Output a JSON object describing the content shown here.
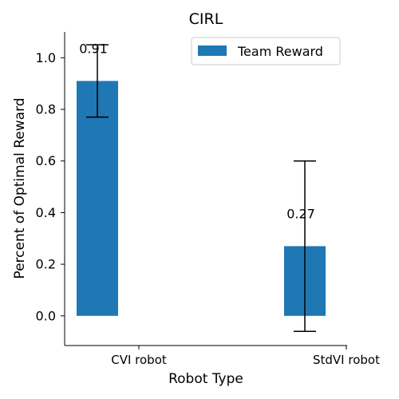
{
  "chart_data": {
    "type": "bar",
    "title": "CIRL",
    "xlabel": "Robot Type",
    "ylabel": "Percent of Optimal Reward",
    "categories": [
      "CVI robot",
      "StdVI robot"
    ],
    "series": [
      {
        "name": "Team Reward",
        "values": [
          0.91,
          0.27
        ],
        "error_low": [
          0.77,
          -0.06
        ],
        "error_high": [
          1.05,
          0.6
        ],
        "data_labels": [
          "0.91",
          "0.27"
        ],
        "color": "#1f77b4"
      }
    ],
    "ylim": [
      -0.115,
      1.1
    ],
    "yticks": [
      0.0,
      0.2,
      0.4,
      0.6,
      0.8,
      1.0
    ],
    "ytick_labels": [
      "0.0",
      "0.2",
      "0.4",
      "0.6",
      "0.8",
      "1.0"
    ],
    "legend_position": "upper-right",
    "grid": false
  }
}
